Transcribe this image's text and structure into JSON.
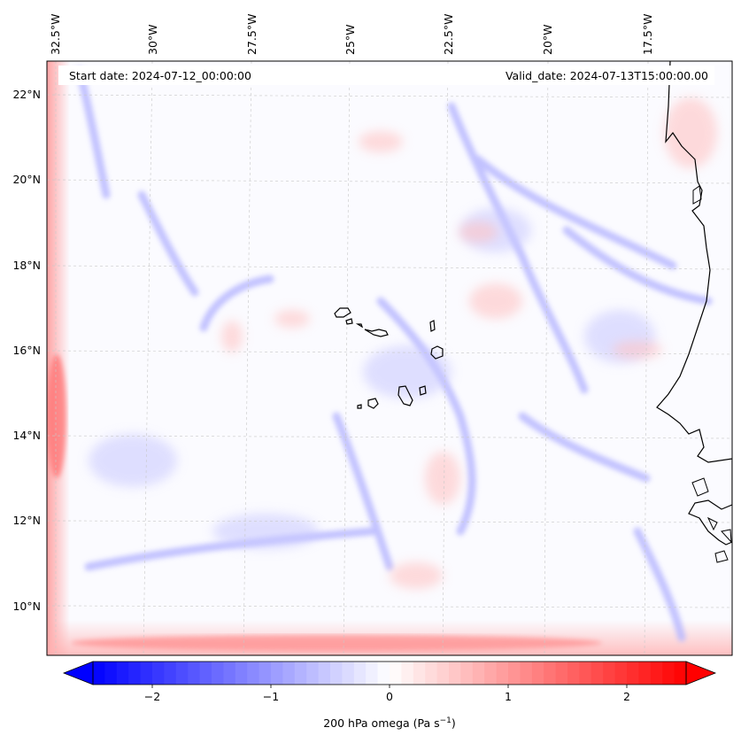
{
  "map": {
    "title_left": "Start date: 2024-07-12_00:00:00",
    "title_right": "Valid_date: 2024-07-13T15:00:00.00",
    "lon_labels": [
      "32.5°W",
      "30°W",
      "27.5°W",
      "25°W",
      "22.5°W",
      "20°W",
      "17.5°W"
    ],
    "lat_labels": [
      "22°N",
      "20°N",
      "18°N",
      "16°N",
      "14°N",
      "12°N",
      "10°N"
    ],
    "field": "200 hPa omega",
    "colormap": "bwr",
    "gridlines": true,
    "coastline_color": "#000000"
  },
  "colorbar": {
    "label_main": "200 hPa omega (Pa s",
    "label_exp": "−1",
    "label_close": ")",
    "ticks": [
      "−2",
      "−1",
      "0",
      "1",
      "2"
    ],
    "tick_values": [
      -2,
      -1,
      0,
      1,
      2
    ],
    "range": [
      -2.5,
      2.5
    ],
    "extend": "both",
    "colors": {
      "min": "#0000ff",
      "mid": "#ffffff",
      "max": "#ff0000"
    }
  }
}
